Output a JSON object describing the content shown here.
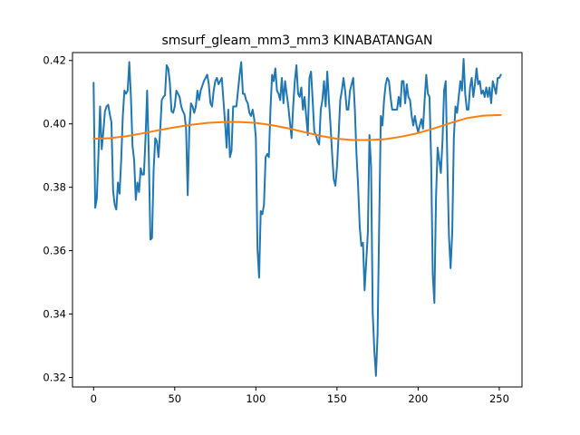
{
  "chart_data": {
    "type": "line",
    "title": "smsurf_gleam_mm3_mm3 KINABATANGAN",
    "xlabel": "",
    "ylabel": "",
    "xlim": [
      -13,
      264
    ],
    "ylim": [
      0.317,
      0.4225
    ],
    "xticks": [
      0,
      50,
      100,
      150,
      200,
      250
    ],
    "xtick_labels": [
      "0",
      "50",
      "100",
      "150",
      "200",
      "250"
    ],
    "yticks": [
      0.32,
      0.34,
      0.36,
      0.38,
      0.4,
      0.42
    ],
    "ytick_labels": [
      "0.32",
      "0.34",
      "0.36",
      "0.38",
      "0.40",
      "0.42"
    ],
    "grid": false,
    "legend": "none",
    "series": [
      {
        "color": "#1f77b4",
        "x": [
          0,
          1,
          2,
          3,
          4,
          5,
          6,
          7,
          8,
          9,
          10,
          11,
          12,
          13,
          14,
          15,
          16,
          17,
          18,
          19,
          20,
          21,
          22,
          23,
          24,
          25,
          26,
          27,
          28,
          29,
          30,
          31,
          32,
          33,
          34,
          35,
          36,
          37,
          38,
          39,
          40,
          41,
          42,
          43,
          44,
          45,
          46,
          47,
          48,
          49,
          50,
          51,
          52,
          53,
          54,
          55,
          56,
          57,
          58,
          59,
          60,
          61,
          62,
          63,
          64,
          65,
          66,
          67,
          68,
          69,
          70,
          71,
          72,
          73,
          74,
          75,
          76,
          77,
          78,
          79,
          80,
          81,
          82,
          83,
          84,
          85,
          86,
          87,
          88,
          89,
          90,
          91,
          92,
          93,
          94,
          95,
          96,
          97,
          98,
          99,
          100,
          101,
          102,
          103,
          104,
          105,
          106,
          107,
          108,
          109,
          110,
          111,
          112,
          113,
          114,
          115,
          116,
          117,
          118,
          119,
          120,
          121,
          122,
          123,
          124,
          125,
          126,
          127,
          128,
          129,
          130,
          131,
          132,
          133,
          134,
          135,
          136,
          137,
          138,
          139,
          140,
          141,
          142,
          143,
          144,
          145,
          146,
          147,
          148,
          149,
          150,
          151,
          152,
          153,
          154,
          155,
          156,
          157,
          158,
          159,
          160,
          161,
          162,
          163,
          164,
          165,
          166,
          167,
          168,
          169,
          170,
          171,
          172,
          173,
          174,
          175,
          176,
          177,
          178,
          179,
          180,
          181,
          182,
          183,
          184,
          185,
          186,
          187,
          188,
          189,
          190,
          191,
          192,
          193,
          194,
          195,
          196,
          197,
          198,
          199,
          200,
          201,
          202,
          203,
          204,
          205,
          206,
          207,
          208,
          209,
          210,
          211,
          212,
          213,
          214,
          215,
          216,
          217,
          218,
          219,
          220,
          221,
          222,
          223,
          224,
          225,
          226,
          227,
          228,
          229,
          230,
          231,
          232,
          233,
          234,
          235,
          236,
          237,
          238,
          239,
          240,
          241,
          242,
          243,
          244,
          245,
          246,
          247,
          248,
          249,
          250,
          251
        ],
        "y": [
          0.413,
          0.3735,
          0.3765,
          0.3905,
          0.4055,
          0.392,
          0.3975,
          0.404,
          0.4055,
          0.406,
          0.403,
          0.4005,
          0.379,
          0.3745,
          0.373,
          0.3815,
          0.378,
          0.3885,
          0.4025,
          0.4105,
          0.4095,
          0.4105,
          0.4195,
          0.4085,
          0.393,
          0.3885,
          0.376,
          0.3815,
          0.3785,
          0.386,
          0.384,
          0.384,
          0.3955,
          0.4105,
          0.3905,
          0.3635,
          0.364,
          0.3855,
          0.3955,
          0.3945,
          0.3895,
          0.3975,
          0.4075,
          0.4085,
          0.409,
          0.4185,
          0.4175,
          0.413,
          0.404,
          0.4035,
          0.4055,
          0.4105,
          0.4095,
          0.4085,
          0.4055,
          0.404,
          0.403,
          0.3985,
          0.3775,
          0.3985,
          0.4065,
          0.4055,
          0.4035,
          0.4055,
          0.4105,
          0.4075,
          0.4105,
          0.412,
          0.4135,
          0.4145,
          0.4155,
          0.4125,
          0.4065,
          0.4055,
          0.4105,
          0.4135,
          0.4145,
          0.4125,
          0.4135,
          0.4145,
          0.4075,
          0.4005,
          0.3925,
          0.4045,
          0.3895,
          0.3915,
          0.4055,
          0.4055,
          0.4055,
          0.4105,
          0.4155,
          0.4195,
          0.4095,
          0.4095,
          0.4075,
          0.4065,
          0.4035,
          0.4025,
          0.4045,
          0.4015,
          0.3955,
          0.3605,
          0.3515,
          0.3725,
          0.3715,
          0.3745,
          0.3895,
          0.3905,
          0.3895,
          0.4045,
          0.4155,
          0.4135,
          0.4175,
          0.4105,
          0.4095,
          0.4075,
          0.4145,
          0.4065,
          0.4135,
          0.4095,
          0.4055,
          0.4005,
          0.3955,
          0.4055,
          0.4135,
          0.4185,
          0.4095,
          0.4085,
          0.4115,
          0.4045,
          0.4085,
          0.4025,
          0.3965,
          0.4145,
          0.4165,
          0.4075,
          0.3975,
          0.3965,
          0.3945,
          0.3935,
          0.4045,
          0.4075,
          0.4135,
          0.4055,
          0.4165,
          0.4075,
          0.3995,
          0.3905,
          0.3825,
          0.3805,
          0.3865,
          0.3965,
          0.4075,
          0.4105,
          0.4145,
          0.4105,
          0.4045,
          0.4045,
          0.4105,
          0.4125,
          0.4145,
          0.4045,
          0.3905,
          0.3805,
          0.3675,
          0.3615,
          0.3625,
          0.3475,
          0.3565,
          0.3655,
          0.3965,
          0.3865,
          0.3405,
          0.3285,
          0.3205,
          0.3335,
          0.3685,
          0.4025,
          0.3995,
          0.4075,
          0.4125,
          0.4145,
          0.4135,
          0.4085,
          0.4045,
          0.4045,
          0.4045,
          0.4045,
          0.4085,
          0.4055,
          0.4135,
          0.4135,
          0.4065,
          0.4125,
          0.4085,
          0.4075,
          0.4025,
          0.3995,
          0.4025,
          0.3995,
          0.3975,
          0.3995,
          0.4015,
          0.3985,
          0.4075,
          0.4155,
          0.4095,
          0.4085,
          0.3885,
          0.3525,
          0.3435,
          0.3765,
          0.3925,
          0.3885,
          0.3845,
          0.3945,
          0.4105,
          0.4135,
          0.3875,
          0.3645,
          0.3545,
          0.3655,
          0.3955,
          0.4055,
          0.4035,
          0.4085,
          0.4135,
          0.4105,
          0.4205,
          0.4095,
          0.4045,
          0.4045,
          0.4115,
          0.4145,
          0.4085,
          0.4125,
          0.4175,
          0.4125,
          0.4135,
          0.4095,
          0.4105,
          0.4085,
          0.4115,
          0.4085,
          0.4115,
          0.4065,
          0.4135,
          0.4115,
          0.4095,
          0.4145,
          0.4145,
          0.4155
        ]
      },
      {
        "color": "#ff7f0e",
        "x": [
          0,
          10,
          20,
          30,
          40,
          50,
          60,
          70,
          80,
          90,
          100,
          110,
          120,
          130,
          140,
          150,
          160,
          170,
          180,
          190,
          200,
          210,
          220,
          230,
          240,
          251
        ],
        "y": [
          0.3953,
          0.3955,
          0.3961,
          0.397,
          0.398,
          0.3989,
          0.3997,
          0.4003,
          0.4006,
          0.4006,
          0.4003,
          0.3996,
          0.3986,
          0.3974,
          0.3962,
          0.3953,
          0.3949,
          0.3949,
          0.3952,
          0.396,
          0.3971,
          0.3986,
          0.4003,
          0.4018,
          0.4026,
          0.4028
        ]
      }
    ]
  }
}
